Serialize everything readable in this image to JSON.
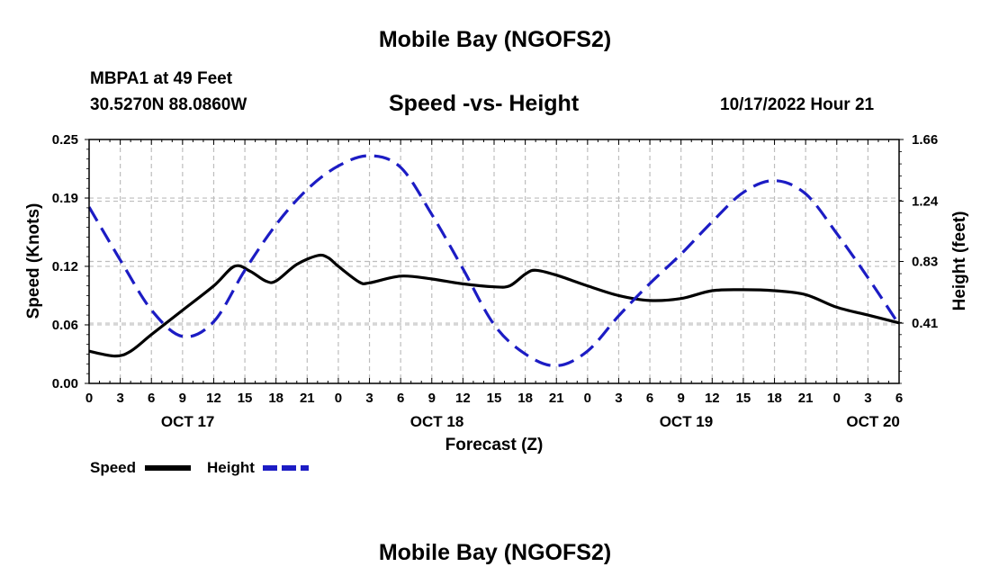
{
  "header": {
    "title": "Mobile Bay (NGOFS2)",
    "station": "MBPA1 at 49 Feet",
    "coords": "30.5270N  88.0860W",
    "subtitle": "Speed -vs- Height",
    "timestamp": "10/17/2022 Hour 21"
  },
  "footer": {
    "title": "Mobile Bay (NGOFS2)"
  },
  "chart_data": {
    "type": "line",
    "title": "Speed -vs- Height",
    "xlabel": "Forecast (Z)",
    "ylabel": "Speed (Knots)",
    "y2label": "Height (feet)",
    "x_unit": "hours from Oct 17 00Z",
    "xlim": [
      0,
      78
    ],
    "ylim": [
      0,
      0.25
    ],
    "y2lim": [
      0,
      1.66
    ],
    "yticks": [
      0.0,
      0.06,
      0.12,
      0.19,
      0.25
    ],
    "ytick_labels": [
      "0.00",
      "0.06",
      "0.12",
      "0.19",
      "0.25"
    ],
    "y2ticks": [
      0.41,
      0.83,
      1.24,
      1.66
    ],
    "y2tick_labels": [
      "0.41",
      "0.83",
      "1.24",
      "1.66"
    ],
    "xticks": [
      0,
      3,
      6,
      9,
      12,
      15,
      18,
      21,
      24,
      27,
      30,
      33,
      36,
      39,
      42,
      45,
      48,
      51,
      54,
      57,
      60,
      63,
      66,
      69,
      72,
      75,
      78
    ],
    "xtick_labels": [
      "0",
      "3",
      "6",
      "9",
      "12",
      "15",
      "18",
      "21",
      "0",
      "3",
      "6",
      "9",
      "12",
      "15",
      "18",
      "21",
      "0",
      "3",
      "6",
      "9",
      "12",
      "15",
      "18",
      "21",
      "0",
      "3",
      "6"
    ],
    "day_labels": [
      {
        "label": "OCT 17",
        "x": 9.5
      },
      {
        "label": "OCT 18",
        "x": 33.5
      },
      {
        "label": "OCT 19",
        "x": 57.5
      },
      {
        "label": "OCT 20",
        "x": 75.5
      }
    ],
    "grid": true,
    "series": [
      {
        "name": "Speed",
        "axis": "left",
        "color": "#000000",
        "dash": "solid",
        "points": [
          [
            0,
            0.033
          ],
          [
            2.5,
            0.028
          ],
          [
            4,
            0.033
          ],
          [
            6,
            0.05
          ],
          [
            9,
            0.075
          ],
          [
            12,
            0.1
          ],
          [
            14,
            0.12
          ],
          [
            15.5,
            0.115
          ],
          [
            17,
            0.105
          ],
          [
            18,
            0.105
          ],
          [
            20,
            0.122
          ],
          [
            22,
            0.131
          ],
          [
            23,
            0.129
          ],
          [
            24,
            0.12
          ],
          [
            26,
            0.104
          ],
          [
            27,
            0.103
          ],
          [
            30,
            0.11
          ],
          [
            33,
            0.107
          ],
          [
            36,
            0.102
          ],
          [
            39,
            0.099
          ],
          [
            40.5,
            0.1
          ],
          [
            42,
            0.112
          ],
          [
            43,
            0.116
          ],
          [
            45,
            0.111
          ],
          [
            48,
            0.1
          ],
          [
            51,
            0.09
          ],
          [
            54,
            0.085
          ],
          [
            57,
            0.087
          ],
          [
            60,
            0.095
          ],
          [
            63,
            0.096
          ],
          [
            66,
            0.095
          ],
          [
            69,
            0.091
          ],
          [
            72,
            0.078
          ],
          [
            75,
            0.07
          ],
          [
            78,
            0.062
          ]
        ]
      },
      {
        "name": "Height",
        "axis": "right",
        "color": "#1c1cc4",
        "dash": "dashed",
        "points": [
          [
            0,
            1.2
          ],
          [
            3,
            0.84
          ],
          [
            6,
            0.5
          ],
          [
            9,
            0.32
          ],
          [
            12,
            0.42
          ],
          [
            15,
            0.77
          ],
          [
            18,
            1.08
          ],
          [
            21,
            1.32
          ],
          [
            24,
            1.48
          ],
          [
            27,
            1.55
          ],
          [
            30,
            1.47
          ],
          [
            33,
            1.15
          ],
          [
            36,
            0.78
          ],
          [
            39,
            0.4
          ],
          [
            42,
            0.2
          ],
          [
            45,
            0.12
          ],
          [
            48,
            0.22
          ],
          [
            51,
            0.46
          ],
          [
            54,
            0.68
          ],
          [
            57,
            0.88
          ],
          [
            60,
            1.1
          ],
          [
            63,
            1.3
          ],
          [
            66,
            1.38
          ],
          [
            69,
            1.29
          ],
          [
            72,
            1.02
          ],
          [
            75,
            0.72
          ],
          [
            78,
            0.4
          ]
        ]
      }
    ],
    "legend": {
      "position": "bottom-left",
      "entries": [
        {
          "label": "Speed",
          "color": "#000000",
          "dash": "solid"
        },
        {
          "label": "Height",
          "color": "#1c1cc4",
          "dash": "dashed"
        }
      ]
    }
  }
}
